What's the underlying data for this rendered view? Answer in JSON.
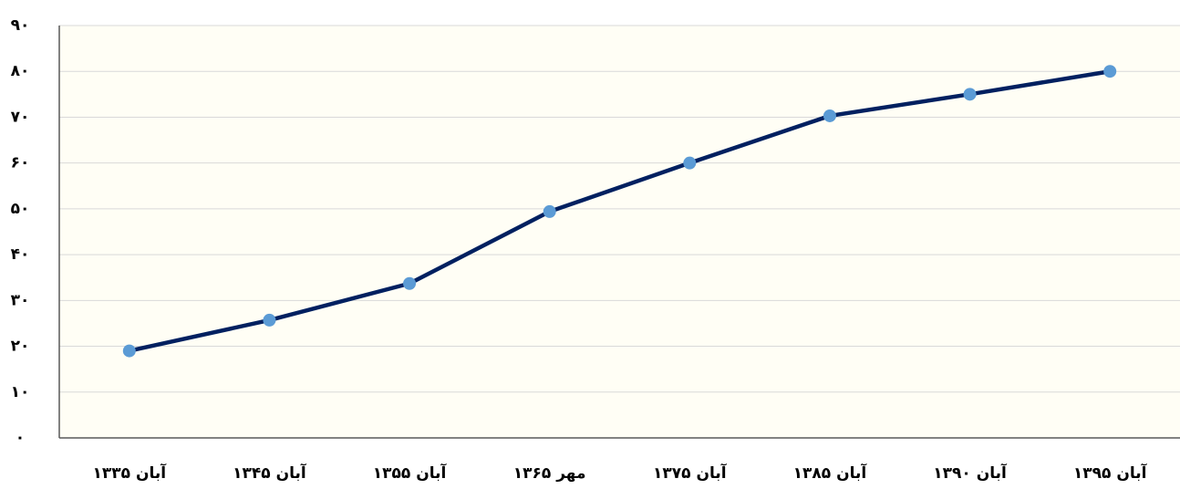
{
  "chart_data": {
    "type": "line",
    "categories": [
      "آبان ۱۳۳۵",
      "آبان ۱۳۴۵",
      "آبان ۱۳۵۵",
      "مهر ۱۳۶۵",
      "آبان ۱۳۷۵",
      "آبان ۱۳۸۵",
      "آبان ۱۳۹۰",
      "آبان ۱۳۹۵"
    ],
    "series": [
      {
        "color": "#002060",
        "marker_color": "#5b9bd5",
        "values": [
          19,
          25.7,
          33.7,
          49.4,
          60,
          70.3,
          75,
          80
        ]
      }
    ],
    "ylim": [
      0,
      90
    ],
    "yticks": [
      {
        "value": 0,
        "label": "۰"
      },
      {
        "value": 10,
        "label": "۱۰"
      },
      {
        "value": 20,
        "label": "۲۰"
      },
      {
        "value": 30,
        "label": "۳۰"
      },
      {
        "value": 40,
        "label": "۴۰"
      },
      {
        "value": 50,
        "label": "۵۰"
      },
      {
        "value": 60,
        "label": "۶۰"
      },
      {
        "value": 70,
        "label": "۷۰"
      },
      {
        "value": 80,
        "label": "۸۰"
      },
      {
        "value": 90,
        "label": "۹۰"
      }
    ],
    "grid": true
  }
}
